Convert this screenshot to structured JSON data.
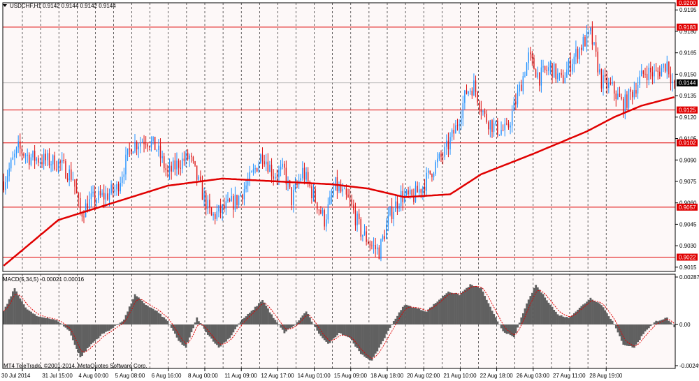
{
  "header": {
    "symbol_line": "USDCHF,H1  0.9142 0.9144 0.9142 0.9144"
  },
  "colors": {
    "background": "#fdf8f8",
    "candle_up": "#1e90ff",
    "candle_down": "#dc1414",
    "ma": "#e00000",
    "hline": "#e00000",
    "grid": "#000000",
    "macd_hist": "#606060",
    "macd_signal": "#e00000",
    "current_price_bg": "#000000"
  },
  "macd": {
    "label": "MACD(5,34,5) -0.00021 0.00016",
    "scale_labels": [
      "0.00287",
      "0.00",
      "-0.00249"
    ]
  },
  "copyright": "MT4 TeleTrade, ©2001-2014, MetaQuotes Software Corp.",
  "chart_data": {
    "type": "candlestick",
    "symbol": "USDCHF",
    "timeframe": "H1",
    "ylim": [
      0.9012,
      0.92
    ],
    "y_ticks": [
      "0.9195",
      "0.9180",
      "0.9165",
      "0.9150",
      "0.9135",
      "0.9120",
      "0.9105",
      "0.9090",
      "0.9075",
      "0.9060",
      "0.9045",
      "0.9030",
      "0.9015"
    ],
    "x_labels": [
      "30 Jul 2014",
      "31 Jul 15:00",
      "4 Aug 00:00",
      "5 Aug 08:00",
      "6 Aug 16:00",
      "8 Aug 00:00",
      "11 Aug 09:00",
      "12 Aug 17:00",
      "14 Aug 01:00",
      "15 Aug 09:00",
      "18 Aug 18:00",
      "20 Aug 02:00",
      "21 Aug 10:00",
      "22 Aug 18:00",
      "26 Aug 03:00",
      "27 Aug 11:00",
      "28 Aug 19:00"
    ],
    "horizontal_levels": [
      {
        "label": "0.9200",
        "value": 0.92
      },
      {
        "label": "0.9183",
        "value": 0.9183
      },
      {
        "label": "0.9125",
        "value": 0.9125
      },
      {
        "label": "0.9102",
        "value": 0.9102
      },
      {
        "label": "0.9057",
        "value": 0.9057
      },
      {
        "label": "0.9022",
        "value": 0.9022
      }
    ],
    "current_price": {
      "label": "0.9144",
      "value": 0.9144
    },
    "price_anchors": [
      [
        0,
        0.9075
      ],
      [
        8,
        0.9098
      ],
      [
        14,
        0.9092
      ],
      [
        22,
        0.909
      ],
      [
        30,
        0.9088
      ],
      [
        38,
        0.9078
      ],
      [
        42,
        0.9052
      ],
      [
        48,
        0.9062
      ],
      [
        56,
        0.9065
      ],
      [
        62,
        0.907
      ],
      [
        70,
        0.91
      ],
      [
        78,
        0.9105
      ],
      [
        84,
        0.9098
      ],
      [
        90,
        0.908
      ],
      [
        96,
        0.9088
      ],
      [
        102,
        0.9092
      ],
      [
        108,
        0.907
      ],
      [
        114,
        0.905
      ],
      [
        120,
        0.9055
      ],
      [
        128,
        0.9062
      ],
      [
        136,
        0.9078
      ],
      [
        142,
        0.9095
      ],
      [
        148,
        0.908
      ],
      [
        154,
        0.9082
      ],
      [
        158,
        0.9062
      ],
      [
        164,
        0.9082
      ],
      [
        170,
        0.9065
      ],
      [
        176,
        0.9048
      ],
      [
        182,
        0.9072
      ],
      [
        190,
        0.906
      ],
      [
        196,
        0.904
      ],
      [
        202,
        0.903
      ],
      [
        206,
        0.9026
      ],
      [
        212,
        0.9052
      ],
      [
        218,
        0.9065
      ],
      [
        224,
        0.9063
      ],
      [
        230,
        0.9072
      ],
      [
        236,
        0.9085
      ],
      [
        242,
        0.9095
      ],
      [
        248,
        0.9112
      ],
      [
        254,
        0.9138
      ],
      [
        258,
        0.9142
      ],
      [
        264,
        0.912
      ],
      [
        270,
        0.9112
      ],
      [
        276,
        0.911
      ],
      [
        282,
        0.9135
      ],
      [
        288,
        0.9162
      ],
      [
        294,
        0.9148
      ],
      [
        300,
        0.9155
      ],
      [
        306,
        0.9145
      ],
      [
        312,
        0.916
      ],
      [
        318,
        0.9172
      ],
      [
        322,
        0.9178
      ],
      [
        328,
        0.9145
      ],
      [
        334,
        0.914
      ],
      [
        340,
        0.9128
      ],
      [
        346,
        0.914
      ],
      [
        352,
        0.9152
      ],
      [
        358,
        0.915
      ],
      [
        364,
        0.9158
      ],
      [
        368,
        0.914
      ]
    ],
    "ma_anchors": [
      [
        0,
        0.9016
      ],
      [
        30,
        0.9048
      ],
      [
        60,
        0.906
      ],
      [
        90,
        0.9072
      ],
      [
        120,
        0.9077
      ],
      [
        150,
        0.9075
      ],
      [
        180,
        0.9073
      ],
      [
        200,
        0.907
      ],
      [
        220,
        0.9064
      ],
      [
        245,
        0.9066
      ],
      [
        262,
        0.908
      ],
      [
        290,
        0.9094
      ],
      [
        320,
        0.911
      ],
      [
        335,
        0.912
      ],
      [
        350,
        0.9128
      ],
      [
        368,
        0.9134
      ]
    ],
    "macd_hist_anchors": [
      [
        0,
        0.0008
      ],
      [
        6,
        0.0022
      ],
      [
        12,
        0.001
      ],
      [
        18,
        0.0005
      ],
      [
        24,
        0.0004
      ],
      [
        30,
        0.0002
      ],
      [
        36,
        -0.0004
      ],
      [
        42,
        -0.002
      ],
      [
        48,
        -0.0012
      ],
      [
        54,
        -0.0006
      ],
      [
        60,
        -0.0002
      ],
      [
        66,
        0.0003
      ],
      [
        72,
        0.0018
      ],
      [
        78,
        0.0012
      ],
      [
        84,
        0.0008
      ],
      [
        90,
        0.0002
      ],
      [
        96,
        -0.001
      ],
      [
        100,
        -0.0014
      ],
      [
        106,
        0.0004
      ],
      [
        112,
        -0.0006
      ],
      [
        118,
        -0.0014
      ],
      [
        124,
        -0.0008
      ],
      [
        130,
        0.0002
      ],
      [
        136,
        0.0008
      ],
      [
        142,
        0.0015
      ],
      [
        148,
        0.0004
      ],
      [
        154,
        -0.0005
      ],
      [
        160,
        0.0
      ],
      [
        166,
        0.0008
      ],
      [
        172,
        -0.0004
      ],
      [
        178,
        -0.0012
      ],
      [
        184,
        -0.0005
      ],
      [
        190,
        -0.0008
      ],
      [
        196,
        -0.0018
      ],
      [
        202,
        -0.0022
      ],
      [
        208,
        -0.001
      ],
      [
        214,
        0.0002
      ],
      [
        220,
        0.0012
      ],
      [
        226,
        0.001
      ],
      [
        232,
        0.0008
      ],
      [
        238,
        0.0014
      ],
      [
        244,
        0.002
      ],
      [
        250,
        0.0018
      ],
      [
        256,
        0.0024
      ],
      [
        262,
        0.0022
      ],
      [
        268,
        0.0008
      ],
      [
        274,
        -0.0004
      ],
      [
        280,
        -0.0008
      ],
      [
        286,
        0.001
      ],
      [
        292,
        0.0024
      ],
      [
        298,
        0.0015
      ],
      [
        304,
        0.0006
      ],
      [
        310,
        0.0004
      ],
      [
        316,
        0.001
      ],
      [
        322,
        0.0016
      ],
      [
        328,
        0.0012
      ],
      [
        334,
        0.0002
      ],
      [
        340,
        -0.0012
      ],
      [
        346,
        -0.0014
      ],
      [
        352,
        -0.0004
      ],
      [
        358,
        0.0002
      ],
      [
        364,
        0.0004
      ],
      [
        368,
        -0.0002
      ]
    ]
  }
}
